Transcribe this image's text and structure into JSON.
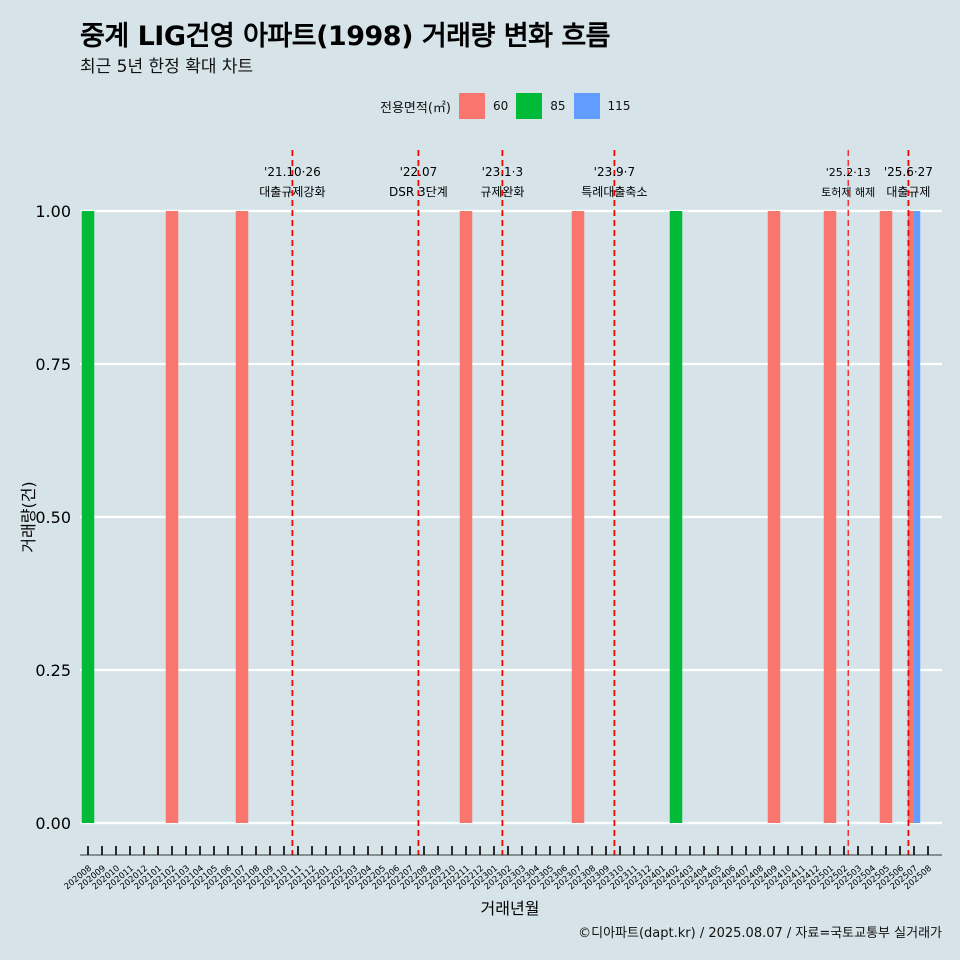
{
  "title": "중계 LIG건영 아파트(1998) 거래량 변화 흐름",
  "subtitle": "최근 5년 한정 확대 차트",
  "legend": {
    "title": "전용면적(㎡)",
    "items": [
      {
        "label": "60",
        "color": "#f8766d"
      },
      {
        "label": "85",
        "color": "#00ba38"
      },
      {
        "label": "115",
        "color": "#619cff"
      }
    ]
  },
  "footer": "©디아파트(dapt.kr) / 2025.08.07 / 자료=국토교통부 실거래가",
  "chart_data": {
    "type": "bar",
    "title": "중계 LIG건영 아파트(1998) 거래량 변화 흐름",
    "subtitle": "최근 5년 한정 확대 차트",
    "xlabel": "거래년월",
    "ylabel": "거래량(건)",
    "ylim": [
      0,
      1
    ],
    "yticks": [
      "0.00",
      "0.25",
      "0.50",
      "0.75",
      "1.00"
    ],
    "categories": [
      "202008",
      "202009",
      "202010",
      "202011",
      "202012",
      "202101",
      "202102",
      "202103",
      "202104",
      "202105",
      "202106",
      "202107",
      "202108",
      "202109",
      "202110",
      "202111",
      "202112",
      "202201",
      "202202",
      "202203",
      "202204",
      "202205",
      "202206",
      "202207",
      "202208",
      "202209",
      "202210",
      "202211",
      "202212",
      "202301",
      "202302",
      "202303",
      "202304",
      "202305",
      "202306",
      "202307",
      "202308",
      "202309",
      "202310",
      "202311",
      "202312",
      "202401",
      "202402",
      "202403",
      "202404",
      "202405",
      "202406",
      "202407",
      "202408",
      "202409",
      "202410",
      "202411",
      "202412",
      "202501",
      "202502",
      "202503",
      "202504",
      "202505",
      "202506",
      "202507",
      "202508"
    ],
    "bars": [
      {
        "month": "202008",
        "area": "85",
        "value": 1
      },
      {
        "month": "202102",
        "area": "60",
        "value": 1
      },
      {
        "month": "202107",
        "area": "60",
        "value": 1
      },
      {
        "month": "202211",
        "area": "60",
        "value": 1
      },
      {
        "month": "202307",
        "area": "60",
        "value": 1
      },
      {
        "month": "202402",
        "area": "85",
        "value": 1
      },
      {
        "month": "202409",
        "area": "60",
        "value": 1
      },
      {
        "month": "202501",
        "area": "60",
        "value": 1
      },
      {
        "month": "202505",
        "area": "60",
        "value": 1
      },
      {
        "month": "202507",
        "area": "60",
        "value": 1
      },
      {
        "month": "202507",
        "area": "115",
        "value": 1
      }
    ],
    "annotations": [
      {
        "month_pos": 14.6,
        "date": "'21.10·26",
        "label": "대출규제강화"
      },
      {
        "month_pos": 23.6,
        "date": "'22.07",
        "label": "DSR 3단계"
      },
      {
        "month_pos": 29.6,
        "date": "'23.1·3",
        "label": "규제완화"
      },
      {
        "month_pos": 37.6,
        "date": "'23.9·7",
        "label": "특례대출축소"
      },
      {
        "month_pos": 54.3,
        "date": "'25.2·13",
        "label": "토허제 해제"
      },
      {
        "month_pos": 58.6,
        "date": "'25.6·27",
        "label": "대출규제"
      }
    ],
    "grid": true,
    "legend_position": "top"
  }
}
